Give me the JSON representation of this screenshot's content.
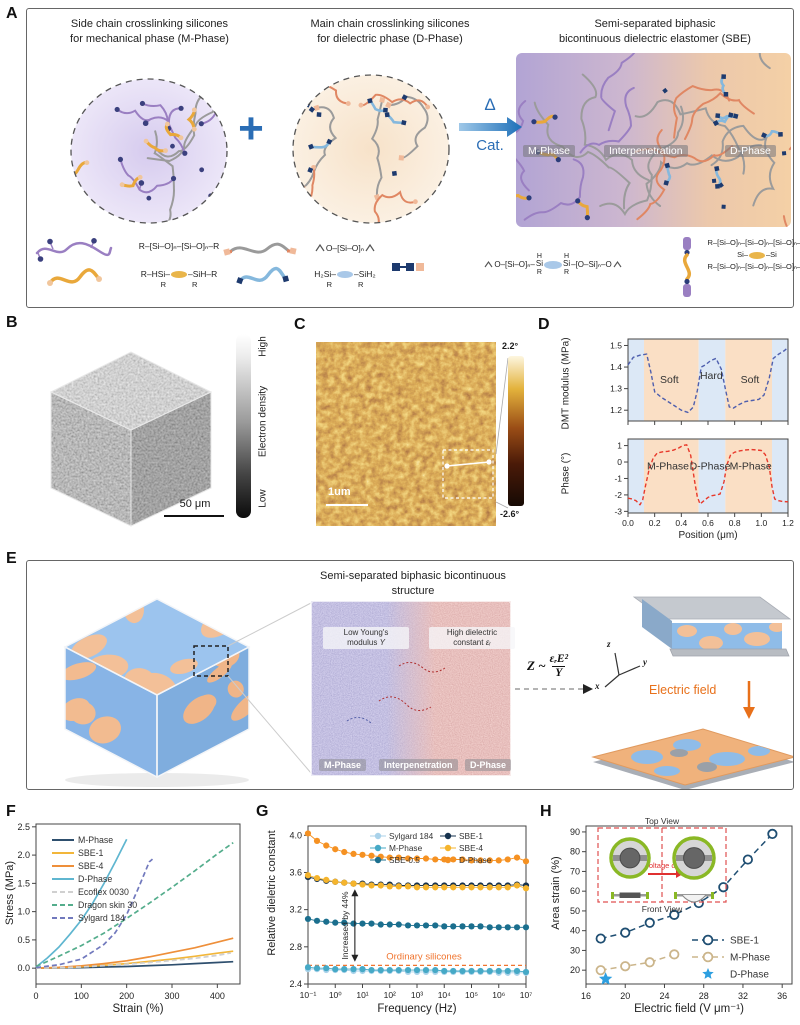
{
  "panel_a": {
    "label": "A",
    "col1_title": "Side chain crosslinking silicones\nfor mechanical phase (M-Phase)",
    "col2_title": "Main chain crosslinking silicones\nfor dielectric phase (D-Phase)",
    "col3_title": "Semi-separated biphasic\nbicontinuous dielectric elastomer (SBE)",
    "plus": "+",
    "delta": "Δ",
    "cat": "Cat.",
    "sbe_badges": [
      "M-Phase",
      "Interpenetration",
      "D-Phase"
    ],
    "chem": {
      "f1a": "R–[Si–O]ₙ–[Si–O]ₙ–R",
      "f1b_left": "R–HSi–",
      "f1b_right": "–SiH–R",
      "below_r": "R",
      "f2a": "O–[Si–O]ₙ",
      "f2b_left": "H₂Si–",
      "f2b_right": "–SiH₂",
      "f3_h": "H",
      "f3_left": "O–[Si–O]ₙ–",
      "f3_si": "Si",
      "f3_right": "–[O–Si]ₙ–O",
      "f3_r": "R",
      "f4_line1": "R–[Si–O]ₙ–[Si–O]ₙ–[Si–O]ₙ–R",
      "f4_mid_left": "Si–",
      "f4_mid_right": "–Si",
      "f4_line3": "R–[Si–O]ₙ–[Si–O]ₙ–[Si–O]ₙ–R"
    }
  },
  "panel_b": {
    "label": "B",
    "cb_high": "High",
    "cb_mid": "Electron density",
    "cb_low": "Low",
    "scalebar": "50 μm"
  },
  "panel_c": {
    "label": "C",
    "scalebar": "1um",
    "cb_top": "2.2°",
    "cb_bottom": "-2.6°"
  },
  "panel_d": {
    "label": "D"
  },
  "panel_e": {
    "label": "E",
    "title": "Semi-separated biphasic bicontinuous\nstructure",
    "low_line1": "Low Young's",
    "low_line2": "modulus ",
    "low_sym": "Y",
    "high_line1": "High dielectric",
    "high_line2": "constant ",
    "high_sym": "εᵣ",
    "badges": [
      "M-Phase",
      "Interpenetration",
      "D-Phase"
    ],
    "eq_lhs": "Z ~",
    "eq_num": "εᵣE²",
    "eq_den": "Y",
    "axis_x": "x",
    "axis_y": "y",
    "axis_z": "z",
    "efield": "Electric field"
  },
  "panel_f": {
    "label": "F"
  },
  "panel_g": {
    "label": "G"
  },
  "panel_h": {
    "label": "H",
    "inset": {
      "top": "Top View",
      "bottom": "Front View",
      "voltage": "Voltage on"
    }
  },
  "chart_data": [
    {
      "id": "d_modulus",
      "type": "line",
      "panel": "D",
      "ylabel": "DMT modulus (MPa)",
      "xlabel": "",
      "xlim": [
        0,
        1.2
      ],
      "ylim": [
        1.15,
        1.53
      ],
      "ytick_vals": [
        1.2,
        1.3,
        1.4,
        1.5
      ],
      "ytick_labels": [
        "1.2",
        "1.3",
        "1.4",
        "1.5"
      ],
      "xtick_vals": [
        0,
        0.2,
        0.4,
        0.6,
        0.8,
        1.0,
        1.2
      ],
      "bands": [
        {
          "x0": 0,
          "x1": 0.12,
          "color": "#dce8f6"
        },
        {
          "x0": 0.12,
          "x1": 0.53,
          "color": "#fadfc5"
        },
        {
          "x0": 0.53,
          "x1": 0.73,
          "color": "#dce8f6"
        },
        {
          "x0": 0.73,
          "x1": 1.08,
          "color": "#fadfc5"
        },
        {
          "x0": 1.08,
          "x1": 1.2,
          "color": "#dce8f6"
        }
      ],
      "region_labels": [
        {
          "text": "Soft",
          "x": 0.31,
          "y": 1.325
        },
        {
          "text": "Hard",
          "x": 0.625,
          "y": 1.345
        },
        {
          "text": "Soft",
          "x": 0.915,
          "y": 1.325
        }
      ],
      "series": [
        {
          "name": "DMT modulus",
          "color": "#4e5fae",
          "dash": "4,2.5",
          "x": [
            0,
            0.04,
            0.09,
            0.14,
            0.17,
            0.2,
            0.25,
            0.3,
            0.35,
            0.4,
            0.45,
            0.49,
            0.52,
            0.55,
            0.58,
            0.62,
            0.66,
            0.7,
            0.73,
            0.76,
            0.79,
            0.83,
            0.88,
            0.93,
            0.98,
            1.02,
            1.06,
            1.09,
            1.13,
            1.17,
            1.2
          ],
          "y": [
            1.41,
            1.445,
            1.455,
            1.46,
            1.38,
            1.285,
            1.26,
            1.24,
            1.22,
            1.2,
            1.19,
            1.215,
            1.29,
            1.4,
            1.41,
            1.43,
            1.44,
            1.39,
            1.3,
            1.215,
            1.21,
            1.225,
            1.24,
            1.245,
            1.25,
            1.27,
            1.35,
            1.44,
            1.46,
            1.475,
            1.49
          ]
        }
      ]
    },
    {
      "id": "d_phase",
      "type": "line",
      "panel": "D",
      "ylabel": "Phase (°)",
      "xlabel": "Position (μm)",
      "xlim": [
        0,
        1.2
      ],
      "ylim": [
        -3.1,
        1.4
      ],
      "ytick_vals": [
        -3,
        -2,
        -1,
        0,
        1
      ],
      "ytick_labels": [
        "-3",
        "-2",
        "-1",
        "0",
        "1"
      ],
      "xtick_vals": [
        0,
        0.2,
        0.4,
        0.6,
        0.8,
        1.0,
        1.2
      ],
      "xtick_labels": [
        "0.0",
        "0.2",
        "0.4",
        "0.6",
        "0.8",
        "1.0",
        "1.2"
      ],
      "bands": [
        {
          "x0": 0,
          "x1": 0.12,
          "color": "#dce8f6"
        },
        {
          "x0": 0.12,
          "x1": 0.53,
          "color": "#fadfc5"
        },
        {
          "x0": 0.53,
          "x1": 0.73,
          "color": "#dce8f6"
        },
        {
          "x0": 0.73,
          "x1": 1.08,
          "color": "#fadfc5"
        },
        {
          "x0": 1.08,
          "x1": 1.2,
          "color": "#dce8f6"
        }
      ],
      "region_labels": [
        {
          "text": "M-Phase",
          "x": 0.3,
          "y": -0.45
        },
        {
          "text": "D-Phase",
          "x": 0.615,
          "y": -0.45
        },
        {
          "text": "M-Phase",
          "x": 0.92,
          "y": -0.45
        }
      ],
      "series": [
        {
          "name": "Phase",
          "color": "#e8392b",
          "dash": "4,2.5",
          "x": [
            0,
            0.03,
            0.06,
            0.09,
            0.11,
            0.13,
            0.16,
            0.19,
            0.22,
            0.26,
            0.3,
            0.34,
            0.38,
            0.41,
            0.44,
            0.47,
            0.5,
            0.52,
            0.54,
            0.57,
            0.6,
            0.63,
            0.66,
            0.69,
            0.72,
            0.74,
            0.77,
            0.8,
            0.84,
            0.88,
            0.92,
            0.96,
            1.0,
            1.03,
            1.06,
            1.08,
            1.1,
            1.13,
            1.16,
            1.2
          ],
          "y": [
            -2.2,
            -2.25,
            -2.35,
            -2.6,
            -2.3,
            -1.5,
            -0.4,
            0.25,
            0.55,
            0.62,
            0.65,
            0.72,
            0.85,
            1.0,
            1.05,
            0.4,
            -1.2,
            -2.1,
            -2.55,
            -2.35,
            -2.15,
            -2.05,
            -2.0,
            -1.95,
            -1.2,
            -0.2,
            0.45,
            0.6,
            0.68,
            0.73,
            0.76,
            0.74,
            0.7,
            0.45,
            -0.3,
            -1.5,
            -2.25,
            -2.35,
            -2.4,
            -2.42
          ]
        }
      ]
    },
    {
      "id": "stress_strain",
      "type": "line",
      "panel": "F",
      "xlabel": "Strain (%)",
      "ylabel": "Stress (MPa)",
      "xlim": [
        0,
        450
      ],
      "ylim": [
        -0.28,
        2.55
      ],
      "xtick_vals": [
        0,
        100,
        200,
        300,
        400
      ],
      "xtick_labels": [
        "0",
        "100",
        "200",
        "300",
        "400"
      ],
      "ytick_vals": [
        0,
        0.5,
        1,
        1.5,
        2,
        2.5
      ],
      "ytick_labels": [
        "0.0",
        "0.5",
        "1.0",
        "1.5",
        "2.0",
        "2.5"
      ],
      "legend_position": "top-left",
      "series": [
        {
          "name": "M-Phase",
          "color": "#2e4f6e",
          "dash": null,
          "x": [
            0,
            50,
            100,
            150,
            200,
            250,
            300,
            350,
            400,
            435
          ],
          "y": [
            0,
            0.005,
            0.01,
            0.02,
            0.03,
            0.045,
            0.06,
            0.08,
            0.1,
            0.115
          ]
        },
        {
          "name": "SBE-1",
          "color": "#f2b63a",
          "dash": null,
          "x": [
            0,
            50,
            100,
            150,
            200,
            250,
            300,
            350,
            400,
            435
          ],
          "y": [
            0,
            0.01,
            0.025,
            0.05,
            0.08,
            0.12,
            0.16,
            0.21,
            0.265,
            0.3
          ]
        },
        {
          "name": "SBE-4",
          "color": "#ee8f3a",
          "dash": null,
          "x": [
            0,
            50,
            100,
            150,
            200,
            250,
            300,
            350,
            400,
            435
          ],
          "y": [
            0,
            0.015,
            0.04,
            0.08,
            0.13,
            0.2,
            0.28,
            0.36,
            0.46,
            0.53
          ]
        },
        {
          "name": "D-Phase",
          "color": "#5fb6d0",
          "dash": null,
          "x": [
            0,
            25,
            50,
            75,
            100,
            125,
            150,
            175,
            200
          ],
          "y": [
            0.02,
            0.18,
            0.37,
            0.6,
            0.85,
            1.15,
            1.5,
            1.88,
            2.28
          ]
        },
        {
          "name": "Ecoflex 0030",
          "color": "#d0d0d0",
          "dash": "5,3",
          "x": [
            0,
            50,
            100,
            150,
            200,
            250,
            300,
            350,
            400,
            430
          ],
          "y": [
            0,
            0.01,
            0.02,
            0.045,
            0.07,
            0.1,
            0.135,
            0.175,
            0.225,
            0.27
          ]
        },
        {
          "name": "Dragon skin 30",
          "color": "#54ad8c",
          "dash": "5,3",
          "x": [
            0,
            50,
            100,
            150,
            200,
            250,
            300,
            350,
            400,
            435
          ],
          "y": [
            0.03,
            0.21,
            0.4,
            0.62,
            0.88,
            1.15,
            1.43,
            1.72,
            2.02,
            2.22
          ]
        },
        {
          "name": "Sylgard 184",
          "color": "#7179bd",
          "dash": "5,3",
          "x": [
            0,
            50,
            100,
            150,
            175,
            200,
            225,
            250,
            257
          ],
          "y": [
            0.01,
            0.06,
            0.16,
            0.42,
            0.63,
            0.95,
            1.4,
            1.88,
            1.93
          ]
        }
      ]
    },
    {
      "id": "dielectric",
      "type": "scatter-line",
      "panel": "G",
      "xlabel": "Frequency (Hz)",
      "ylabel": "Relative dieletric constant",
      "xscale": "log",
      "xlim_log": [
        -1,
        7
      ],
      "ylim": [
        2.4,
        4.1
      ],
      "xtick_logs": [
        -1,
        0,
        1,
        2,
        3,
        4,
        5,
        6,
        7
      ],
      "xtick_labels": [
        "10⁻¹",
        "10⁰",
        "10¹",
        "10²",
        "10³",
        "10⁴",
        "10⁵",
        "10⁶",
        "10⁷"
      ],
      "ytick_vals": [
        2.4,
        2.8,
        3.2,
        3.6,
        4.0
      ],
      "ytick_labels": [
        "2.4",
        "2.8",
        "3.2",
        "3.6",
        "4.0"
      ],
      "x_log_points": [
        -1,
        -0.67,
        -0.33,
        0,
        0.33,
        0.67,
        1,
        1.33,
        1.67,
        2,
        2.33,
        2.67,
        3,
        3.33,
        3.67,
        4,
        4.33,
        4.67,
        5,
        5.33,
        5.67,
        6,
        6.33,
        6.67,
        7
      ],
      "series": [
        {
          "name": "Sylgard 184",
          "color": "#a9d2ea",
          "y": [
            2.56,
            2.56,
            2.55,
            2.55,
            2.55,
            2.54,
            2.54,
            2.54,
            2.54,
            2.54,
            2.54,
            2.53,
            2.53,
            2.53,
            2.53,
            2.53,
            2.53,
            2.53,
            2.53,
            2.53,
            2.53,
            2.52,
            2.52,
            2.52,
            2.52
          ]
        },
        {
          "name": "M-Phase",
          "color": "#46a9c6",
          "y": [
            2.58,
            2.57,
            2.57,
            2.56,
            2.56,
            2.56,
            2.56,
            2.55,
            2.55,
            2.55,
            2.55,
            2.55,
            2.55,
            2.55,
            2.55,
            2.54,
            2.54,
            2.54,
            2.54,
            2.54,
            2.54,
            2.54,
            2.54,
            2.54,
            2.53
          ]
        },
        {
          "name": "SBE-0.5",
          "color": "#1b6f8e",
          "y": [
            3.1,
            3.08,
            3.07,
            3.06,
            3.06,
            3.05,
            3.05,
            3.05,
            3.04,
            3.04,
            3.04,
            3.03,
            3.03,
            3.03,
            3.03,
            3.02,
            3.02,
            3.02,
            3.02,
            3.02,
            3.01,
            3.01,
            3.01,
            3.01,
            3.01
          ]
        },
        {
          "name": "SBE-1",
          "color": "#16324e",
          "y": [
            3.55,
            3.53,
            3.51,
            3.5,
            3.49,
            3.48,
            3.48,
            3.47,
            3.47,
            3.47,
            3.46,
            3.46,
            3.46,
            3.46,
            3.46,
            3.46,
            3.46,
            3.46,
            3.46,
            3.46,
            3.46,
            3.46,
            3.46,
            3.47,
            3.46
          ]
        },
        {
          "name": "SBE-4",
          "color": "#f5b42c",
          "y": [
            3.57,
            3.54,
            3.52,
            3.5,
            3.49,
            3.48,
            3.47,
            3.46,
            3.46,
            3.45,
            3.45,
            3.45,
            3.44,
            3.44,
            3.44,
            3.44,
            3.44,
            3.44,
            3.44,
            3.44,
            3.44,
            3.44,
            3.44,
            3.46,
            3.43
          ]
        },
        {
          "name": "D-Phase",
          "color": "#f59122",
          "y": [
            4.02,
            3.94,
            3.89,
            3.85,
            3.82,
            3.8,
            3.79,
            3.78,
            3.77,
            3.76,
            3.76,
            3.75,
            3.75,
            3.75,
            3.74,
            3.74,
            3.74,
            3.74,
            3.73,
            3.73,
            3.73,
            3.73,
            3.74,
            3.76,
            3.72
          ]
        }
      ],
      "legend_cols": [
        [
          "Sylgard 184",
          "M-Phase",
          "SBE-0.5"
        ],
        [
          "SBE-1",
          "SBE-4",
          "D-Phase"
        ]
      ],
      "hline": {
        "y": 2.6,
        "label": "Ordinary silicones",
        "color": "#f0742e"
      },
      "annotation": {
        "text": "Increased by 44%",
        "x_log": 0.72,
        "y0": 2.64,
        "y1": 3.42
      }
    },
    {
      "id": "area_strain",
      "type": "scatter-line",
      "panel": "H",
      "xlabel": "Electric field (V μm⁻¹)",
      "ylabel": "Area strain (%)",
      "xlim": [
        16,
        37
      ],
      "ylim": [
        13,
        93
      ],
      "xtick_vals": [
        16,
        20,
        24,
        28,
        32,
        36
      ],
      "xtick_labels": [
        "16",
        "20",
        "24",
        "28",
        "32",
        "36"
      ],
      "ytick_vals": [
        20,
        30,
        40,
        50,
        60,
        70,
        80,
        90
      ],
      "ytick_labels": [
        "20",
        "30",
        "40",
        "50",
        "60",
        "70",
        "80",
        "90"
      ],
      "series": [
        {
          "name": "SBE-1",
          "color": "#1f4e72",
          "marker": "open-circle",
          "dash": "6,4",
          "x": [
            17.5,
            20,
            22.5,
            25,
            27.5,
            30,
            32.5,
            35
          ],
          "y": [
            36,
            39,
            44,
            48,
            54,
            62,
            76,
            89
          ]
        },
        {
          "name": "M-Phase",
          "color": "#cbb58b",
          "marker": "open-circle",
          "dash": "6,4",
          "x": [
            17.5,
            20,
            22.5,
            25
          ],
          "y": [
            20,
            22,
            24,
            28
          ]
        },
        {
          "name": "D-Phase",
          "color": "#2d9fe0",
          "marker": "star",
          "dash": null,
          "x": [
            18
          ],
          "y": [
            15.5
          ]
        }
      ]
    }
  ]
}
